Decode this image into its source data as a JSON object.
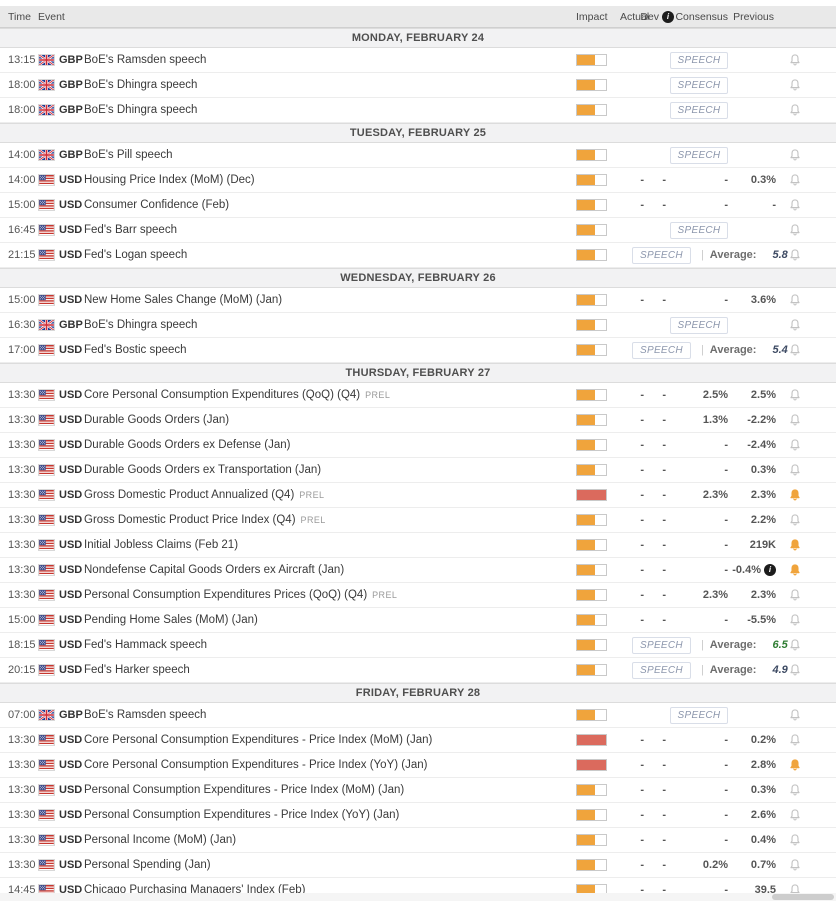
{
  "header": {
    "time": "Time",
    "event": "Event",
    "impact": "Impact",
    "actual": "Actual",
    "dev": "Dev",
    "consensus": "Consensus",
    "previous": "Previous"
  },
  "labels": {
    "speech_badge": "SPEECH",
    "average_label": "Average:",
    "separator": "|",
    "info": "i"
  },
  "colors": {
    "impact_medium": "#f0a43c",
    "impact_high": "#db6a5d",
    "bell_default": "#c3c3c3",
    "bell_active": "#f0a43c",
    "average_default": "#3d4a63",
    "average_green": "#2e7d32"
  },
  "days": [
    {
      "label": "MONDAY, FEBRUARY 24",
      "events": [
        {
          "time": "13:15",
          "flag": "GB",
          "currency": "GBP",
          "name": "BoE's Ramsden speech",
          "suffix": "",
          "impact": "medium",
          "type": "speech",
          "bell": "default"
        },
        {
          "time": "18:00",
          "flag": "GB",
          "currency": "GBP",
          "name": "BoE's Dhingra speech",
          "suffix": "",
          "impact": "medium",
          "type": "speech",
          "bell": "default"
        },
        {
          "time": "18:00",
          "flag": "GB",
          "currency": "GBP",
          "name": "BoE's Dhingra speech",
          "suffix": "",
          "impact": "medium",
          "type": "speech",
          "bell": "default"
        }
      ]
    },
    {
      "label": "TUESDAY, FEBRUARY 25",
      "events": [
        {
          "time": "14:00",
          "flag": "GB",
          "currency": "GBP",
          "name": "BoE's Pill speech",
          "suffix": "",
          "impact": "medium",
          "type": "speech",
          "bell": "default"
        },
        {
          "time": "14:00",
          "flag": "US",
          "currency": "USD",
          "name": "Housing Price Index (MoM) (Dec)",
          "suffix": "",
          "impact": "medium",
          "type": "data",
          "actual": "-",
          "dev": "-",
          "consensus": "-",
          "previous": "0.3%",
          "previous_info": false,
          "bell": "default"
        },
        {
          "time": "15:00",
          "flag": "US",
          "currency": "USD",
          "name": "Consumer Confidence (Feb)",
          "suffix": "",
          "impact": "medium",
          "type": "data",
          "actual": "-",
          "dev": "-",
          "consensus": "-",
          "previous": "-",
          "previous_info": false,
          "bell": "default"
        },
        {
          "time": "16:45",
          "flag": "US",
          "currency": "USD",
          "name": "Fed's Barr speech",
          "suffix": "",
          "impact": "medium",
          "type": "speech",
          "bell": "default"
        },
        {
          "time": "21:15",
          "flag": "US",
          "currency": "USD",
          "name": "Fed's Logan speech",
          "suffix": "",
          "impact": "medium",
          "type": "speech",
          "average": "5.8",
          "average_color": "default",
          "bell": "default"
        }
      ]
    },
    {
      "label": "WEDNESDAY, FEBRUARY 26",
      "events": [
        {
          "time": "15:00",
          "flag": "US",
          "currency": "USD",
          "name": "New Home Sales Change (MoM) (Jan)",
          "suffix": "",
          "impact": "medium",
          "type": "data",
          "actual": "-",
          "dev": "-",
          "consensus": "-",
          "previous": "3.6%",
          "previous_info": false,
          "bell": "default"
        },
        {
          "time": "16:30",
          "flag": "GB",
          "currency": "GBP",
          "name": "BoE's Dhingra speech",
          "suffix": "",
          "impact": "medium",
          "type": "speech",
          "bell": "default"
        },
        {
          "time": "17:00",
          "flag": "US",
          "currency": "USD",
          "name": "Fed's Bostic speech",
          "suffix": "",
          "impact": "medium",
          "type": "speech",
          "average": "5.4",
          "average_color": "default",
          "bell": "default"
        }
      ]
    },
    {
      "label": "THURSDAY, FEBRUARY 27",
      "events": [
        {
          "time": "13:30",
          "flag": "US",
          "currency": "USD",
          "name": "Core Personal Consumption Expenditures (QoQ) (Q4)",
          "suffix": "PREL",
          "impact": "medium",
          "type": "data",
          "actual": "-",
          "dev": "-",
          "consensus": "2.5%",
          "previous": "2.5%",
          "previous_info": false,
          "bell": "default"
        },
        {
          "time": "13:30",
          "flag": "US",
          "currency": "USD",
          "name": "Durable Goods Orders (Jan)",
          "suffix": "",
          "impact": "medium",
          "type": "data",
          "actual": "-",
          "dev": "-",
          "consensus": "1.3%",
          "previous": "-2.2%",
          "previous_info": false,
          "bell": "default"
        },
        {
          "time": "13:30",
          "flag": "US",
          "currency": "USD",
          "name": "Durable Goods Orders ex Defense (Jan)",
          "suffix": "",
          "impact": "medium",
          "type": "data",
          "actual": "-",
          "dev": "-",
          "consensus": "-",
          "previous": "-2.4%",
          "previous_info": false,
          "bell": "default"
        },
        {
          "time": "13:30",
          "flag": "US",
          "currency": "USD",
          "name": "Durable Goods Orders ex Transportation (Jan)",
          "suffix": "",
          "impact": "medium",
          "type": "data",
          "actual": "-",
          "dev": "-",
          "consensus": "-",
          "previous": "0.3%",
          "previous_info": false,
          "bell": "default"
        },
        {
          "time": "13:30",
          "flag": "US",
          "currency": "USD",
          "name": "Gross Domestic Product Annualized (Q4)",
          "suffix": "PREL",
          "impact": "high",
          "type": "data",
          "actual": "-",
          "dev": "-",
          "consensus": "2.3%",
          "previous": "2.3%",
          "previous_info": false,
          "bell": "active"
        },
        {
          "time": "13:30",
          "flag": "US",
          "currency": "USD",
          "name": "Gross Domestic Product Price Index (Q4)",
          "suffix": "PREL",
          "impact": "medium",
          "type": "data",
          "actual": "-",
          "dev": "-",
          "consensus": "-",
          "previous": "2.2%",
          "previous_info": false,
          "bell": "default"
        },
        {
          "time": "13:30",
          "flag": "US",
          "currency": "USD",
          "name": "Initial Jobless Claims (Feb 21)",
          "suffix": "",
          "impact": "medium",
          "type": "data",
          "actual": "-",
          "dev": "-",
          "consensus": "-",
          "previous": "219K",
          "previous_info": false,
          "bell": "active"
        },
        {
          "time": "13:30",
          "flag": "US",
          "currency": "USD",
          "name": "Nondefense Capital Goods Orders ex Aircraft (Jan)",
          "suffix": "",
          "impact": "medium",
          "type": "data",
          "actual": "-",
          "dev": "-",
          "consensus": "-",
          "previous": "-0.4%",
          "previous_info": true,
          "bell": "active"
        },
        {
          "time": "13:30",
          "flag": "US",
          "currency": "USD",
          "name": "Personal Consumption Expenditures Prices (QoQ) (Q4)",
          "suffix": "PREL",
          "impact": "medium",
          "type": "data",
          "actual": "-",
          "dev": "-",
          "consensus": "2.3%",
          "previous": "2.3%",
          "previous_info": false,
          "bell": "default"
        },
        {
          "time": "15:00",
          "flag": "US",
          "currency": "USD",
          "name": "Pending Home Sales (MoM) (Jan)",
          "suffix": "",
          "impact": "medium",
          "type": "data",
          "actual": "-",
          "dev": "-",
          "consensus": "-",
          "previous": "-5.5%",
          "previous_info": false,
          "bell": "default"
        },
        {
          "time": "18:15",
          "flag": "US",
          "currency": "USD",
          "name": "Fed's Hammack speech",
          "suffix": "",
          "impact": "medium",
          "type": "speech",
          "average": "6.5",
          "average_color": "green",
          "bell": "default"
        },
        {
          "time": "20:15",
          "flag": "US",
          "currency": "USD",
          "name": "Fed's Harker speech",
          "suffix": "",
          "impact": "medium",
          "type": "speech",
          "average": "4.9",
          "average_color": "default",
          "bell": "default"
        }
      ]
    },
    {
      "label": "FRIDAY, FEBRUARY 28",
      "events": [
        {
          "time": "07:00",
          "flag": "GB",
          "currency": "GBP",
          "name": "BoE's Ramsden speech",
          "suffix": "",
          "impact": "medium",
          "type": "speech",
          "bell": "default"
        },
        {
          "time": "13:30",
          "flag": "US",
          "currency": "USD",
          "name": "Core Personal Consumption Expenditures - Price Index (MoM) (Jan)",
          "suffix": "",
          "impact": "high",
          "type": "data",
          "actual": "-",
          "dev": "-",
          "consensus": "-",
          "previous": "0.2%",
          "previous_info": false,
          "bell": "default"
        },
        {
          "time": "13:30",
          "flag": "US",
          "currency": "USD",
          "name": "Core Personal Consumption Expenditures - Price Index (YoY) (Jan)",
          "suffix": "",
          "impact": "high",
          "type": "data",
          "actual": "-",
          "dev": "-",
          "consensus": "-",
          "previous": "2.8%",
          "previous_info": false,
          "bell": "active"
        },
        {
          "time": "13:30",
          "flag": "US",
          "currency": "USD",
          "name": "Personal Consumption Expenditures - Price Index (MoM) (Jan)",
          "suffix": "",
          "impact": "medium",
          "type": "data",
          "actual": "-",
          "dev": "-",
          "consensus": "-",
          "previous": "0.3%",
          "previous_info": false,
          "bell": "default"
        },
        {
          "time": "13:30",
          "flag": "US",
          "currency": "USD",
          "name": "Personal Consumption Expenditures - Price Index (YoY) (Jan)",
          "suffix": "",
          "impact": "medium",
          "type": "data",
          "actual": "-",
          "dev": "-",
          "consensus": "-",
          "previous": "2.6%",
          "previous_info": false,
          "bell": "default"
        },
        {
          "time": "13:30",
          "flag": "US",
          "currency": "USD",
          "name": "Personal Income (MoM) (Jan)",
          "suffix": "",
          "impact": "medium",
          "type": "data",
          "actual": "-",
          "dev": "-",
          "consensus": "-",
          "previous": "0.4%",
          "previous_info": false,
          "bell": "default"
        },
        {
          "time": "13:30",
          "flag": "US",
          "currency": "USD",
          "name": "Personal Spending (Jan)",
          "suffix": "",
          "impact": "medium",
          "type": "data",
          "actual": "-",
          "dev": "-",
          "consensus": "0.2%",
          "previous": "0.7%",
          "previous_info": false,
          "bell": "default"
        },
        {
          "time": "14:45",
          "flag": "US",
          "currency": "USD",
          "name": "Chicago Purchasing Managers' Index (Feb)",
          "suffix": "",
          "impact": "medium",
          "type": "data",
          "actual": "-",
          "dev": "-",
          "consensus": "-",
          "previous": "39.5",
          "previous_info": false,
          "bell": "default"
        }
      ]
    }
  ]
}
